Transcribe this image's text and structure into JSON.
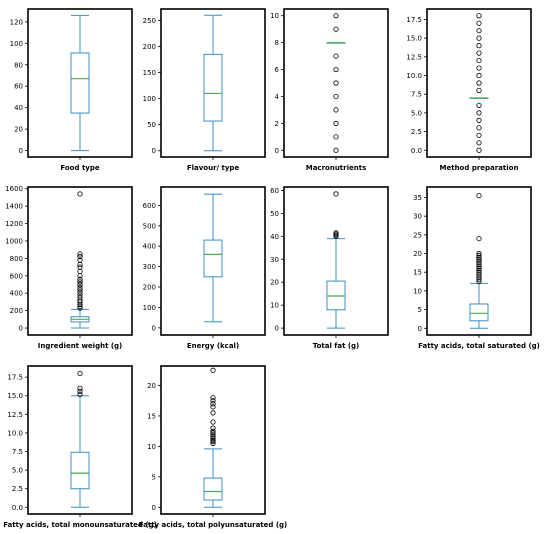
{
  "colors": {
    "box": "#3b8fc4",
    "median": "#4cae4c",
    "frame": "#000000",
    "outlier": "#000000",
    "text": "#000000"
  },
  "chart_data": [
    {
      "type": "box",
      "xlabel": "Food type",
      "ylim": [
        -6,
        132
      ],
      "ticks": [
        0,
        20,
        40,
        60,
        80,
        100,
        120
      ],
      "tick_labels": [
        "0",
        "20",
        "40",
        "60",
        "80",
        "100",
        "120"
      ],
      "stats": {
        "min": 0,
        "q1": 35,
        "median": 67,
        "q3": 91,
        "max": 126
      },
      "outliers": []
    },
    {
      "type": "box",
      "xlabel": "Flavour/ type",
      "ylim": [
        -12,
        272
      ],
      "ticks": [
        0,
        50,
        100,
        150,
        200,
        250
      ],
      "tick_labels": [
        "0",
        "50",
        "100",
        "150",
        "200",
        "250"
      ],
      "stats": {
        "min": 0,
        "q1": 57,
        "median": 110,
        "q3": 185,
        "max": 260
      },
      "outliers": []
    },
    {
      "type": "box",
      "xlabel": "Macronutrients",
      "ylim": [
        -0.5,
        10.5
      ],
      "ticks": [
        0,
        2,
        4,
        6,
        8,
        10
      ],
      "tick_labels": [
        "0",
        "2",
        "4",
        "6",
        "8",
        "10"
      ],
      "stats": {
        "min": 8,
        "q1": 8,
        "median": 8,
        "q3": 8,
        "max": 8
      },
      "outliers": [
        0,
        1,
        2,
        3,
        4,
        5,
        6,
        7,
        9,
        10
      ]
    },
    {
      "type": "box",
      "xlabel": "Method preparation",
      "ylim": [
        -0.9,
        18.9
      ],
      "ticks": [
        0,
        2.5,
        5,
        7.5,
        10,
        12.5,
        15,
        17.5
      ],
      "tick_labels": [
        "0.0",
        "2.5",
        "5.0",
        "7.5",
        "10.0",
        "12.5",
        "15.0",
        "17.5"
      ],
      "stats": {
        "min": 7,
        "q1": 7,
        "median": 7,
        "q3": 7,
        "max": 7
      },
      "outliers": [
        0,
        1,
        2,
        3,
        4,
        5,
        6,
        8,
        9,
        10,
        11,
        12,
        13,
        14,
        15,
        16,
        17,
        18
      ]
    },
    {
      "type": "box",
      "xlabel": "Ingredient weight (g)",
      "ylim": [
        -80,
        1620
      ],
      "ticks": [
        0,
        200,
        400,
        600,
        800,
        1000,
        1200,
        1400,
        1600
      ],
      "tick_labels": [
        "0",
        "200",
        "400",
        "600",
        "800",
        "1000",
        "1200",
        "1400",
        "1600"
      ],
      "stats": {
        "min": 0,
        "q1": 70,
        "median": 100,
        "q3": 130,
        "max": 215
      },
      "outliers": [
        230,
        250,
        270,
        300,
        320,
        350,
        380,
        410,
        440,
        470,
        500,
        530,
        560,
        600,
        650,
        700,
        730,
        780,
        820,
        850,
        1540
      ]
    },
    {
      "type": "box",
      "xlabel": "Energy (kcal)",
      "ylim": [
        -35,
        690
      ],
      "ticks": [
        0,
        100,
        200,
        300,
        400,
        500,
        600
      ],
      "tick_labels": [
        "0",
        "100",
        "200",
        "300",
        "400",
        "500",
        "600"
      ],
      "stats": {
        "min": 30,
        "q1": 250,
        "median": 360,
        "q3": 430,
        "max": 655
      },
      "outliers": []
    },
    {
      "type": "box",
      "xlabel": "Total fat  (g)",
      "ylim": [
        -3,
        61.5
      ],
      "ticks": [
        0,
        10,
        20,
        30,
        40,
        50,
        60
      ],
      "tick_labels": [
        "0",
        "10",
        "20",
        "30",
        "40",
        "50",
        "60"
      ],
      "stats": {
        "min": 0,
        "q1": 8,
        "median": 14,
        "q3": 20.5,
        "max": 39
      },
      "outliers": [
        40,
        40.5,
        41,
        41.5,
        58.5
      ]
    },
    {
      "type": "box",
      "xlabel": "Fatty acids, total saturated (g)",
      "ylim": [
        -1.8,
        37.8
      ],
      "ticks": [
        0,
        5,
        10,
        15,
        20,
        25,
        30,
        35
      ],
      "tick_labels": [
        "0",
        "5",
        "10",
        "15",
        "20",
        "25",
        "30",
        "35"
      ],
      "stats": {
        "min": 0,
        "q1": 2,
        "median": 4,
        "q3": 6.5,
        "max": 12
      },
      "outliers": [
        12.5,
        13,
        13.5,
        14,
        14.5,
        15,
        15.5,
        16,
        16.5,
        17,
        17.5,
        18,
        18.5,
        19,
        19.5,
        20,
        24,
        35.5
      ]
    },
    {
      "type": "box",
      "xlabel": "Fatty acids, total monounsaturated (g)",
      "ylim": [
        -0.9,
        19.0
      ],
      "ticks": [
        0,
        2.5,
        5,
        7.5,
        10,
        12.5,
        15,
        17.5
      ],
      "tick_labels": [
        "0.0",
        "2.5",
        "5.0",
        "7.5",
        "10.0",
        "12.5",
        "15.0",
        "17.5"
      ],
      "stats": {
        "min": 0,
        "q1": 2.5,
        "median": 4.6,
        "q3": 7.4,
        "max": 15
      },
      "outliers": [
        15.2,
        15.6,
        16,
        18
      ]
    },
    {
      "type": "box",
      "xlabel": "Fatty acids, total polyunsaturated (g)",
      "ylim": [
        -1.1,
        23.2
      ],
      "ticks": [
        0,
        5,
        10,
        15,
        20
      ],
      "tick_labels": [
        "0",
        "5",
        "10",
        "15",
        "20"
      ],
      "stats": {
        "min": 0,
        "q1": 1.2,
        "median": 2.6,
        "q3": 4.8,
        "max": 9.6
      },
      "outliers": [
        10.5,
        10.8,
        11,
        11.3,
        11.6,
        11.9,
        12.2,
        12.5,
        13,
        14,
        15.5,
        16.5,
        17,
        17.5,
        18,
        22.5
      ]
    }
  ]
}
